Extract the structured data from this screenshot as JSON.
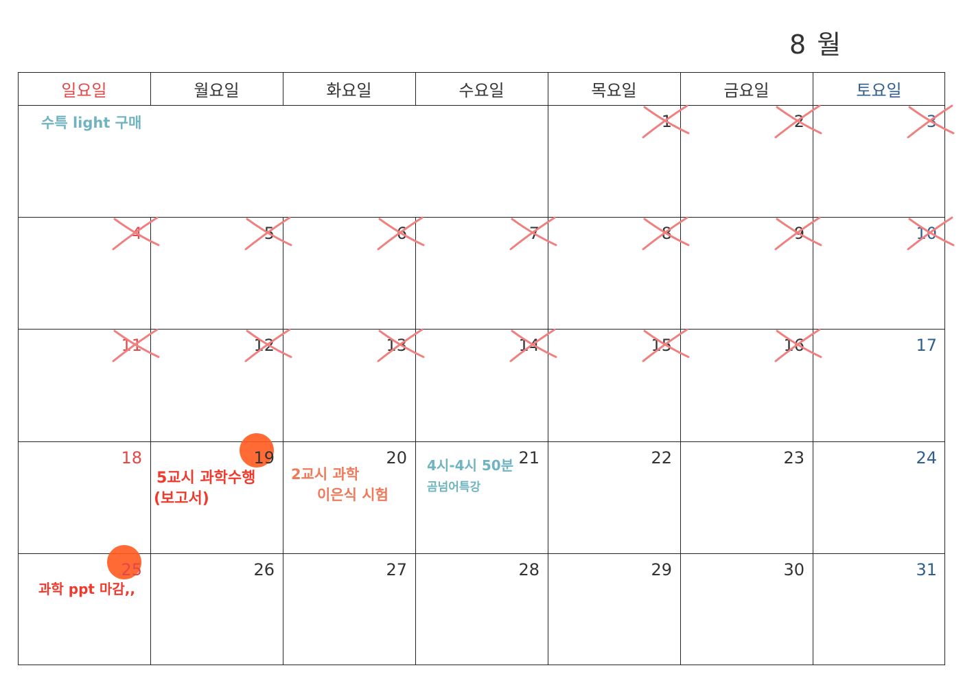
{
  "header": {
    "month_label": "8 월"
  },
  "weekdays": [
    "일요일",
    "월요일",
    "화요일",
    "수요일",
    "목요일",
    "금요일",
    "토요일"
  ],
  "colors": {
    "sunday": "#e24848",
    "saturday": "#2f5f8e",
    "cross": "#f08080",
    "marker": "#ff5a1f",
    "note_teal": "#6fb4c0",
    "note_red": "#ee3b2e",
    "note_orange": "#ef7a5a"
  },
  "days": [
    {
      "n": "1",
      "crossed": true
    },
    {
      "n": "2",
      "crossed": true
    },
    {
      "n": "3",
      "crossed": true
    },
    {
      "n": "4",
      "crossed": true
    },
    {
      "n": "5",
      "crossed": true
    },
    {
      "n": "6",
      "crossed": true
    },
    {
      "n": "7",
      "crossed": true
    },
    {
      "n": "8",
      "crossed": true
    },
    {
      "n": "9",
      "crossed": true
    },
    {
      "n": "10",
      "crossed": true
    },
    {
      "n": "11",
      "crossed": true
    },
    {
      "n": "12",
      "crossed": true
    },
    {
      "n": "13",
      "crossed": true
    },
    {
      "n": "14",
      "crossed": true
    },
    {
      "n": "15",
      "crossed": true
    },
    {
      "n": "16",
      "crossed": true
    },
    {
      "n": "17",
      "crossed": false
    },
    {
      "n": "18",
      "crossed": false
    },
    {
      "n": "19",
      "crossed": false,
      "marked": true
    },
    {
      "n": "20",
      "crossed": false
    },
    {
      "n": "21",
      "crossed": false
    },
    {
      "n": "22",
      "crossed": false
    },
    {
      "n": "23",
      "crossed": false
    },
    {
      "n": "24",
      "crossed": false
    },
    {
      "n": "25",
      "crossed": false,
      "marked": true
    },
    {
      "n": "26",
      "crossed": false
    },
    {
      "n": "27",
      "crossed": false
    },
    {
      "n": "28",
      "crossed": false
    },
    {
      "n": "29",
      "crossed": false
    },
    {
      "n": "30",
      "crossed": false
    },
    {
      "n": "31",
      "crossed": false
    }
  ],
  "notes": {
    "purchase": "수특 light 구매",
    "science_perf_line1": "5교시 과학수행",
    "science_perf_line2": "(보고서)",
    "science_test_line1": "2교시 과학",
    "science_test_line2": "이은식 시험",
    "lecture_line1": "4시-4시 50분",
    "lecture_line2": "곰넘어특강",
    "ppt_deadline": "과학 ppt 마감,,"
  }
}
